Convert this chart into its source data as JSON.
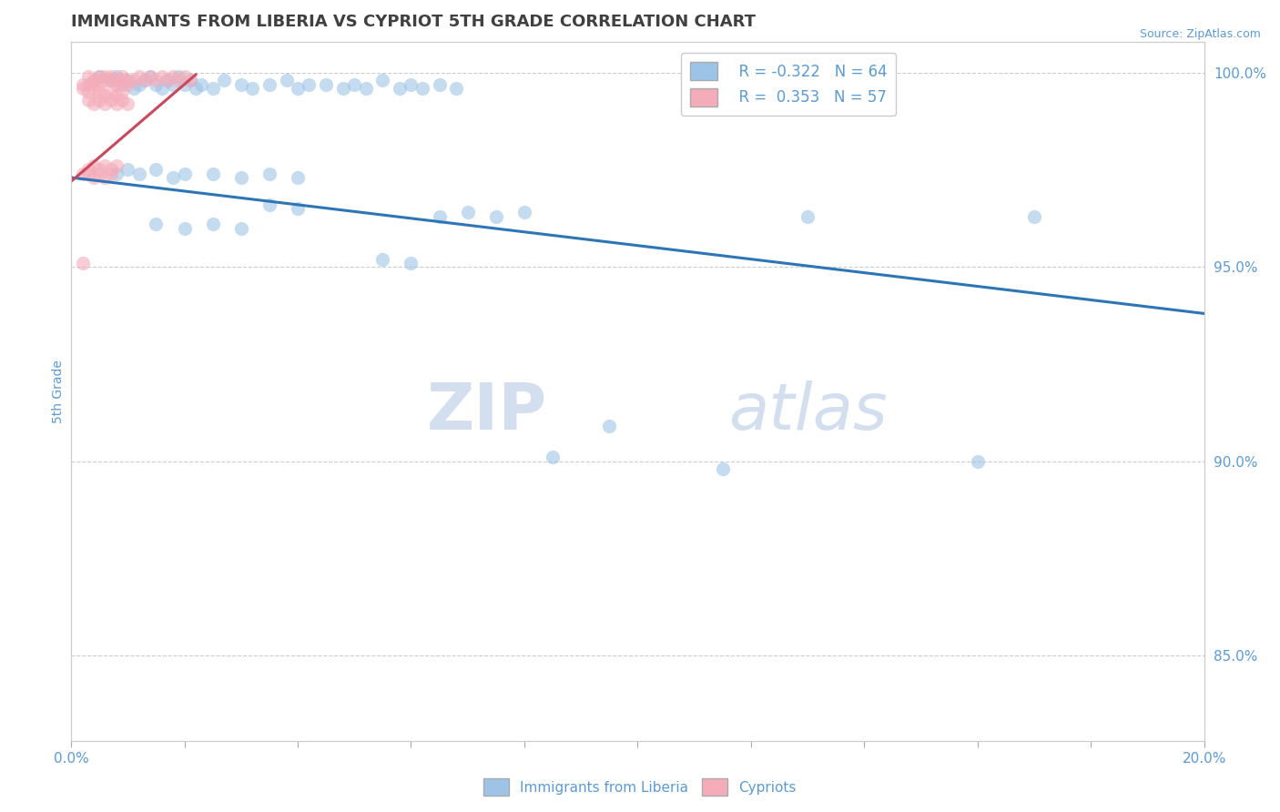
{
  "title": "IMMIGRANTS FROM LIBERIA VS CYPRIOT 5TH GRADE CORRELATION CHART",
  "source_text": "Source: ZipAtlas.com",
  "ylabel": "5th Grade",
  "xlim": [
    0.0,
    0.2
  ],
  "ylim": [
    0.828,
    1.008
  ],
  "xticks": [
    0.0,
    0.02,
    0.04,
    0.06,
    0.08,
    0.1,
    0.12,
    0.14,
    0.16,
    0.18,
    0.2
  ],
  "xticklabels": [
    "0.0%",
    "",
    "",
    "",
    "",
    "",
    "",
    "",
    "",
    "",
    "20.0%"
  ],
  "yticks_right": [
    0.85,
    0.9,
    0.95,
    1.0
  ],
  "yticklabels_right": [
    "85.0%",
    "90.0%",
    "95.0%",
    "100.0%"
  ],
  "blue_R": -0.322,
  "blue_N": 64,
  "pink_R": 0.353,
  "pink_N": 57,
  "blue_color": "#9DC3E6",
  "pink_color": "#F4ACBA",
  "blue_line_color": "#2E75B6",
  "pink_line_color": "#C9485B",
  "blue_line": [
    [
      0.0,
      0.973
    ],
    [
      0.2,
      0.938
    ]
  ],
  "pink_line": [
    [
      0.0,
      0.972
    ],
    [
      0.022,
      0.9995
    ]
  ],
  "blue_points": [
    [
      0.005,
      0.999
    ],
    [
      0.007,
      0.998
    ],
    [
      0.008,
      0.999
    ],
    [
      0.009,
      0.997
    ],
    [
      0.01,
      0.998
    ],
    [
      0.011,
      0.996
    ],
    [
      0.012,
      0.997
    ],
    [
      0.013,
      0.998
    ],
    [
      0.014,
      0.999
    ],
    [
      0.015,
      0.997
    ],
    [
      0.016,
      0.996
    ],
    [
      0.017,
      0.998
    ],
    [
      0.018,
      0.997
    ],
    [
      0.019,
      0.999
    ],
    [
      0.02,
      0.997
    ],
    [
      0.021,
      0.998
    ],
    [
      0.022,
      0.996
    ],
    [
      0.023,
      0.997
    ],
    [
      0.025,
      0.996
    ],
    [
      0.027,
      0.998
    ],
    [
      0.03,
      0.997
    ],
    [
      0.032,
      0.996
    ],
    [
      0.035,
      0.997
    ],
    [
      0.038,
      0.998
    ],
    [
      0.04,
      0.996
    ],
    [
      0.042,
      0.997
    ],
    [
      0.045,
      0.997
    ],
    [
      0.048,
      0.996
    ],
    [
      0.05,
      0.997
    ],
    [
      0.052,
      0.996
    ],
    [
      0.055,
      0.998
    ],
    [
      0.058,
      0.996
    ],
    [
      0.06,
      0.997
    ],
    [
      0.062,
      0.996
    ],
    [
      0.065,
      0.997
    ],
    [
      0.068,
      0.996
    ],
    [
      0.008,
      0.974
    ],
    [
      0.01,
      0.975
    ],
    [
      0.012,
      0.974
    ],
    [
      0.015,
      0.975
    ],
    [
      0.018,
      0.973
    ],
    [
      0.02,
      0.974
    ],
    [
      0.025,
      0.974
    ],
    [
      0.03,
      0.973
    ],
    [
      0.035,
      0.974
    ],
    [
      0.04,
      0.973
    ],
    [
      0.035,
      0.966
    ],
    [
      0.04,
      0.965
    ],
    [
      0.015,
      0.961
    ],
    [
      0.02,
      0.96
    ],
    [
      0.025,
      0.961
    ],
    [
      0.03,
      0.96
    ],
    [
      0.065,
      0.963
    ],
    [
      0.07,
      0.964
    ],
    [
      0.075,
      0.963
    ],
    [
      0.08,
      0.964
    ],
    [
      0.055,
      0.952
    ],
    [
      0.06,
      0.951
    ],
    [
      0.13,
      0.963
    ],
    [
      0.17,
      0.963
    ],
    [
      0.095,
      0.909
    ],
    [
      0.085,
      0.901
    ],
    [
      0.115,
      0.898
    ],
    [
      0.16,
      0.9
    ]
  ],
  "pink_points": [
    [
      0.002,
      0.997
    ],
    [
      0.003,
      0.999
    ],
    [
      0.004,
      0.998
    ],
    [
      0.005,
      0.999
    ],
    [
      0.006,
      0.998
    ],
    [
      0.007,
      0.999
    ],
    [
      0.008,
      0.998
    ],
    [
      0.009,
      0.999
    ],
    [
      0.01,
      0.998
    ],
    [
      0.003,
      0.997
    ],
    [
      0.004,
      0.998
    ],
    [
      0.005,
      0.997
    ],
    [
      0.006,
      0.999
    ],
    [
      0.007,
      0.998
    ],
    [
      0.008,
      0.997
    ],
    [
      0.009,
      0.998
    ],
    [
      0.01,
      0.997
    ],
    [
      0.011,
      0.998
    ],
    [
      0.012,
      0.999
    ],
    [
      0.013,
      0.998
    ],
    [
      0.014,
      0.999
    ],
    [
      0.015,
      0.998
    ],
    [
      0.016,
      0.999
    ],
    [
      0.017,
      0.998
    ],
    [
      0.018,
      0.999
    ],
    [
      0.019,
      0.998
    ],
    [
      0.02,
      0.999
    ],
    [
      0.021,
      0.998
    ],
    [
      0.002,
      0.996
    ],
    [
      0.003,
      0.995
    ],
    [
      0.004,
      0.996
    ],
    [
      0.005,
      0.995
    ],
    [
      0.006,
      0.994
    ],
    [
      0.007,
      0.995
    ],
    [
      0.008,
      0.994
    ],
    [
      0.009,
      0.995
    ],
    [
      0.003,
      0.993
    ],
    [
      0.004,
      0.992
    ],
    [
      0.005,
      0.993
    ],
    [
      0.006,
      0.992
    ],
    [
      0.007,
      0.993
    ],
    [
      0.008,
      0.992
    ],
    [
      0.009,
      0.993
    ],
    [
      0.01,
      0.992
    ],
    [
      0.003,
      0.975
    ],
    [
      0.004,
      0.976
    ],
    [
      0.005,
      0.975
    ],
    [
      0.006,
      0.976
    ],
    [
      0.007,
      0.975
    ],
    [
      0.008,
      0.976
    ],
    [
      0.002,
      0.974
    ],
    [
      0.003,
      0.974
    ],
    [
      0.004,
      0.973
    ],
    [
      0.005,
      0.974
    ],
    [
      0.006,
      0.973
    ],
    [
      0.007,
      0.974
    ],
    [
      0.002,
      0.951
    ]
  ],
  "watermark_zip": "ZIP",
  "watermark_atlas": "atlas",
  "background_color": "#FFFFFF",
  "grid_color": "#CCCCCC",
  "title_color": "#404040",
  "axis_color": "#5B9BD5",
  "tick_color": "#5B9BD5"
}
